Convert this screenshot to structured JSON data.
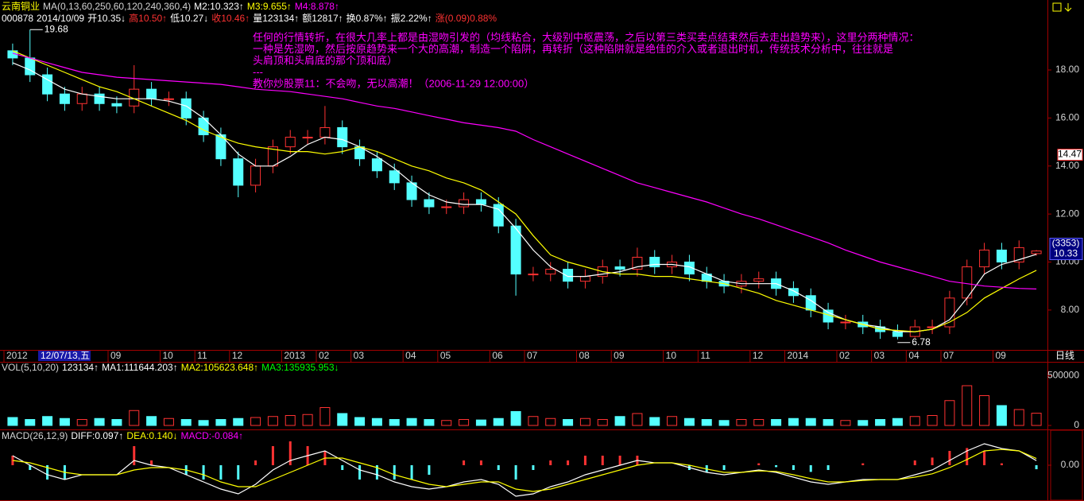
{
  "info": [
    {
      "text": "000878",
      "color": "#ffffff"
    },
    {
      "text": "2014/10/09",
      "color": "#ffffff"
    },
    {
      "text": "开10.35↓",
      "color": "#ffffff"
    },
    {
      "text": "高10.50↑",
      "color": "#ff3232"
    },
    {
      "text": "低10.27↓",
      "color": "#ffffff"
    },
    {
      "text": "收10.46↑",
      "color": "#ff3232"
    },
    {
      "text": "量123134↑",
      "color": "#ffffff"
    },
    {
      "text": "额12817↑",
      "color": "#ffffff"
    },
    {
      "text": "换0.87%↑",
      "color": "#ffffff"
    },
    {
      "text": "振2.22%↑",
      "color": "#ffffff"
    },
    {
      "text": "涨(0.09)0.88%",
      "color": "#ff3232"
    }
  ],
  "annotation": [
    "任何的行情转折，在很大几率上都是由湿吻引发的（均线粘合，大级别中枢震荡，之后以第三类买卖点结束然后去走出趋势来），这里分两种情况：",
    "一种是先湿吻，然后按原趋势来一个大的高潮，制造一个陷阱，再转折（这种陷阱就是绝佳的介入或者退出时机，传统技术分析中，往往就是",
    "头肩顶和头肩底的那个顶和底）",
    "---",
    "教你炒股票11：不会吻，无以高潮！（2006-11-29 12:00:00）"
  ],
  "period": "日线",
  "chart_data": [
    {
      "type": "candlestick",
      "title": "云南铜业",
      "title_color": "#ffff00",
      "subtitle": "MA(0,13,60,250,60,120,240,360,4)",
      "cursor_label": "12/07/13,五",
      "categories": [
        "2012",
        null,
        null,
        null,
        null,
        null,
        "09",
        null,
        null,
        "10",
        null,
        "11",
        null,
        "12",
        null,
        null,
        "2013",
        null,
        "02",
        null,
        "03",
        null,
        null,
        "04",
        null,
        "05",
        null,
        null,
        "06",
        null,
        "07",
        null,
        null,
        "08",
        null,
        "09",
        null,
        null,
        "10",
        null,
        "11",
        null,
        null,
        "12",
        null,
        "2014",
        null,
        null,
        "02",
        null,
        "03",
        null,
        "04",
        null,
        "07",
        null,
        null,
        "09",
        null,
        null
      ],
      "open": [
        18.8,
        18.5,
        17.8,
        17.0,
        16.6,
        17.0,
        16.6,
        16.5,
        17.2,
        16.8,
        16.8,
        16.0,
        15.3,
        14.3,
        13.2,
        14.0,
        14.8,
        15.2,
        15.2,
        15.6,
        14.8,
        14.3,
        13.8,
        13.3,
        12.6,
        12.3,
        12.3,
        12.6,
        12.4,
        11.5,
        9.5,
        9.5,
        9.7,
        9.2,
        9.4,
        9.8,
        9.7,
        10.2,
        9.8,
        10.0,
        9.5,
        9.2,
        9.0,
        9.2,
        9.3,
        8.9,
        8.6,
        8.0,
        7.5,
        7.5,
        7.3,
        7.1,
        6.9,
        7.3,
        7.3,
        8.5,
        9.8,
        10.5,
        10.0,
        10.35
      ],
      "high": [
        19.1,
        19.68,
        18.1,
        17.3,
        17.3,
        17.3,
        16.9,
        18.2,
        17.5,
        17.1,
        17.1,
        16.3,
        15.6,
        14.6,
        14.3,
        15.1,
        15.5,
        15.5,
        16.5,
        15.9,
        15.1,
        14.6,
        14.1,
        13.6,
        12.9,
        12.6,
        12.9,
        12.9,
        12.7,
        11.8,
        9.8,
        10.0,
        10.0,
        9.7,
        10.1,
        10.1,
        10.6,
        10.5,
        10.3,
        10.3,
        9.8,
        9.5,
        9.5,
        9.6,
        9.6,
        9.2,
        8.9,
        8.3,
        7.8,
        7.8,
        7.6,
        7.4,
        7.6,
        7.6,
        8.8,
        10.1,
        10.8,
        10.8,
        10.9,
        10.5
      ],
      "low": [
        18.2,
        17.5,
        16.7,
        16.3,
        16.3,
        16.3,
        16.2,
        16.2,
        16.5,
        16.5,
        15.7,
        15.0,
        14.0,
        12.7,
        12.9,
        13.7,
        14.5,
        14.9,
        14.9,
        14.5,
        14.0,
        13.5,
        13.0,
        12.3,
        12.0,
        12.0,
        12.0,
        12.1,
        11.2,
        8.6,
        9.2,
        9.2,
        8.9,
        8.9,
        9.1,
        9.4,
        9.4,
        9.5,
        9.5,
        9.2,
        8.9,
        8.7,
        8.7,
        8.9,
        8.6,
        8.3,
        7.7,
        7.2,
        7.2,
        7.0,
        6.8,
        6.78,
        6.85,
        7.0,
        7.0,
        8.2,
        9.5,
        9.7,
        9.7,
        10.27
      ],
      "close": [
        18.5,
        17.8,
        17.0,
        16.6,
        17.0,
        16.6,
        16.5,
        17.2,
        16.8,
        16.8,
        16.0,
        15.3,
        14.3,
        13.2,
        14.0,
        14.8,
        15.2,
        15.2,
        15.6,
        14.8,
        14.3,
        13.8,
        13.3,
        12.6,
        12.3,
        12.3,
        12.6,
        12.4,
        11.5,
        9.5,
        9.5,
        9.7,
        9.2,
        9.4,
        9.8,
        9.7,
        10.2,
        9.8,
        10.0,
        9.5,
        9.2,
        9.0,
        9.2,
        9.3,
        8.9,
        8.6,
        8.0,
        7.5,
        7.5,
        7.3,
        7.1,
        6.9,
        7.3,
        7.3,
        8.5,
        9.8,
        10.5,
        10.0,
        10.6,
        10.46
      ],
      "up_color": "#ff3232",
      "down_color": "#54ffff",
      "series": [
        {
          "name": "M2:10.323↑",
          "color": "#ffffff",
          "values": [
            18.3,
            18.0,
            17.6,
            17.2,
            17.0,
            16.9,
            16.8,
            16.8,
            16.8,
            16.7,
            16.5,
            16.0,
            15.3,
            14.5,
            14.0,
            14.0,
            14.4,
            14.9,
            15.2,
            15.1,
            14.8,
            14.4,
            13.9,
            13.3,
            12.8,
            12.5,
            12.4,
            12.4,
            12.2,
            11.4,
            10.5,
            9.8,
            9.4,
            9.4,
            9.5,
            9.6,
            9.8,
            9.9,
            9.9,
            9.8,
            9.5,
            9.2,
            9.1,
            9.1,
            9.1,
            8.8,
            8.4,
            7.9,
            7.6,
            7.4,
            7.3,
            7.1,
            7.1,
            7.2,
            7.6,
            8.5,
            9.5,
            9.9,
            10.1,
            10.323
          ]
        },
        {
          "name": "M3:9.655↑",
          "color": "#ffff00",
          "values": [
            18.8,
            18.5,
            18.2,
            17.9,
            17.6,
            17.3,
            17.1,
            16.8,
            16.5,
            16.2,
            15.9,
            15.5,
            15.2,
            14.95,
            14.8,
            14.7,
            14.6,
            14.6,
            14.5,
            14.6,
            14.8,
            14.6,
            14.3,
            14.0,
            13.8,
            13.5,
            13.3,
            13.0,
            12.5,
            12.0,
            11.1,
            10.3,
            10.0,
            9.8,
            9.6,
            9.5,
            9.5,
            9.4,
            9.4,
            9.3,
            9.2,
            9.1,
            8.9,
            8.7,
            8.4,
            8.2,
            8.0,
            7.8,
            7.6,
            7.4,
            7.2,
            7.15,
            7.1,
            7.2,
            7.5,
            7.9,
            8.5,
            8.9,
            9.3,
            9.655
          ]
        },
        {
          "name": "M4:8.878↑",
          "color": "#ff00ff",
          "values": [
            18.7,
            18.5,
            18.3,
            18.1,
            17.9,
            17.8,
            17.7,
            17.65,
            17.6,
            17.55,
            17.5,
            17.45,
            17.4,
            17.3,
            17.2,
            17.15,
            17.1,
            17.0,
            16.9,
            16.8,
            16.65,
            16.5,
            16.4,
            16.25,
            16.1,
            15.95,
            15.8,
            15.7,
            15.6,
            15.45,
            15.1,
            14.8,
            14.5,
            14.2,
            13.9,
            13.6,
            13.3,
            13.1,
            12.9,
            12.7,
            12.5,
            12.25,
            12.0,
            11.8,
            11.55,
            11.3,
            11.05,
            10.8,
            10.5,
            10.25,
            10.0,
            9.8,
            9.6,
            9.4,
            9.2,
            9.1,
            9.0,
            8.95,
            8.9,
            8.878
          ]
        }
      ],
      "ylim": [
        6.34,
        20.65
      ],
      "yticks": [
        {
          "value": 8,
          "label": "8.00"
        },
        {
          "value": 10,
          "label": "10.00"
        },
        {
          "value": 12,
          "label": "12.00"
        },
        {
          "value": 14,
          "label": "14.00"
        },
        {
          "value": 16,
          "label": "16.00"
        },
        {
          "value": 18,
          "label": "18.00"
        }
      ],
      "price_tags": {
        "cursor": 14.47,
        "count": "(3353)",
        "last": 10.33
      }
    },
    {
      "type": "bar",
      "title": "VOL(5,10,20)",
      "legend": [
        {
          "text": "123134↑",
          "color": "#ffffff"
        },
        {
          "text": "MA1:111644.203↑",
          "color": "#ffffff"
        },
        {
          "text": "MA2:105623.648↑",
          "color": "#ffff00"
        },
        {
          "text": "MA3:135935.953↓",
          "color": "#00ff00"
        }
      ],
      "values": [
        80000,
        60000,
        90000,
        70000,
        60000,
        70000,
        60000,
        150000,
        90000,
        70000,
        60000,
        50000,
        60000,
        70000,
        80000,
        90000,
        100000,
        110000,
        180000,
        120000,
        80000,
        70000,
        60000,
        70000,
        60000,
        50000,
        60000,
        55000,
        70000,
        140000,
        90000,
        70000,
        60000,
        70000,
        60000,
        90000,
        120000,
        80000,
        90000,
        70000,
        60000,
        50000,
        60000,
        60000,
        60000,
        70000,
        70000,
        60000,
        50000,
        50000,
        60000,
        70000,
        90000,
        100000,
        250000,
        400000,
        300000,
        200000,
        160000,
        123134
      ],
      "ylim": [
        0,
        640000
      ],
      "yticks": [
        0,
        500000
      ]
    },
    {
      "type": "macd",
      "title": "MACD(26,12,9)",
      "series": [
        {
          "name": "DIFF:0.097↑",
          "color": "#ffffff",
          "values": [
            0.2,
            0.0,
            -0.2,
            -0.3,
            -0.2,
            -0.2,
            -0.2,
            0.1,
            0.0,
            -0.05,
            -0.2,
            -0.35,
            -0.5,
            -0.6,
            -0.4,
            -0.1,
            0.1,
            0.2,
            0.3,
            0.1,
            -0.1,
            -0.2,
            -0.35,
            -0.45,
            -0.5,
            -0.45,
            -0.35,
            -0.3,
            -0.4,
            -0.65,
            -0.6,
            -0.45,
            -0.35,
            -0.2,
            -0.1,
            0.0,
            0.1,
            0.05,
            0.05,
            -0.05,
            -0.15,
            -0.2,
            -0.15,
            -0.1,
            -0.15,
            -0.25,
            -0.35,
            -0.4,
            -0.35,
            -0.3,
            -0.3,
            -0.3,
            -0.2,
            -0.1,
            0.1,
            0.3,
            0.45,
            0.35,
            0.3,
            0.097
          ]
        },
        {
          "name": "DEA:0.140↓",
          "color": "#ffff00",
          "values": [
            0.1,
            0.05,
            -0.05,
            -0.15,
            -0.2,
            -0.2,
            -0.2,
            -0.1,
            -0.05,
            -0.05,
            -0.1,
            -0.2,
            -0.35,
            -0.45,
            -0.45,
            -0.3,
            -0.15,
            0.0,
            0.15,
            0.15,
            0.05,
            -0.05,
            -0.2,
            -0.3,
            -0.4,
            -0.45,
            -0.4,
            -0.35,
            -0.35,
            -0.5,
            -0.55,
            -0.5,
            -0.4,
            -0.3,
            -0.2,
            -0.1,
            0.0,
            0.05,
            0.05,
            0.0,
            -0.08,
            -0.15,
            -0.15,
            -0.12,
            -0.13,
            -0.2,
            -0.28,
            -0.35,
            -0.35,
            -0.32,
            -0.3,
            -0.3,
            -0.25,
            -0.18,
            -0.05,
            0.12,
            0.3,
            0.33,
            0.3,
            0.14
          ]
        }
      ],
      "bars": {
        "name": "MACD:-0.084↑",
        "color": "#ff00ff",
        "pos_color": "#ff3232",
        "neg_color": "#54ffff",
        "values": [
          0.2,
          -0.1,
          -0.3,
          -0.3,
          0,
          0,
          0,
          0.4,
          0.1,
          0,
          -0.2,
          -0.3,
          -0.3,
          -0.3,
          0.1,
          0.4,
          0.5,
          0.4,
          0.3,
          -0.1,
          -0.3,
          -0.3,
          -0.3,
          -0.3,
          -0.2,
          0,
          0.1,
          0.1,
          -0.1,
          -0.3,
          -0.1,
          0.1,
          0.1,
          0.2,
          0.2,
          0.2,
          0.2,
          0,
          0,
          -0.1,
          -0.14,
          -0.1,
          0,
          0.04,
          -0.04,
          -0.1,
          -0.14,
          -0.1,
          0,
          0.04,
          0,
          0,
          0.1,
          0.16,
          0.3,
          0.36,
          0.3,
          0.04,
          0,
          -0.084
        ]
      },
      "ylim": [
        -0.7,
        0.55
      ],
      "yticks": [
        {
          "value": 0,
          "label": "0.00"
        }
      ]
    }
  ]
}
